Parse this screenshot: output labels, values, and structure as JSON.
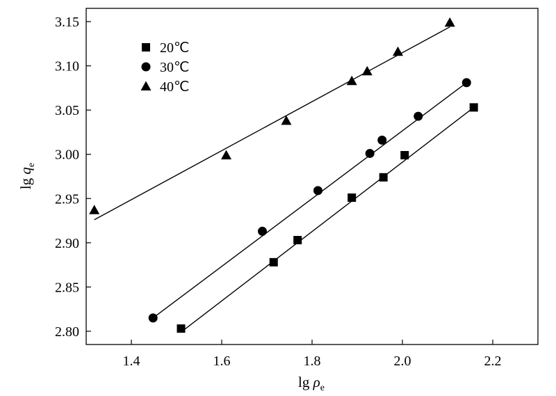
{
  "chart_data": {
    "type": "scatter",
    "xlabel_prefix": "lg",
    "xlabel_var": "ρ",
    "xlabel_sub": "e",
    "ylabel_prefix": "lg",
    "ylabel_var": "q",
    "ylabel_sub": "e",
    "xlim": [
      1.3,
      2.3
    ],
    "ylim": [
      2.785,
      3.165
    ],
    "xticks": [
      1.4,
      1.6,
      1.8,
      2.0,
      2.2
    ],
    "xtick_labels": [
      "1.4",
      "1.6",
      "1.8",
      "2.0",
      "2.2"
    ],
    "yticks": [
      2.8,
      2.85,
      2.9,
      2.95,
      3.0,
      3.05,
      3.1,
      3.15
    ],
    "ytick_labels": [
      "2.80",
      "2.85",
      "2.90",
      "2.95",
      "3.00",
      "3.05",
      "3.10",
      "3.15"
    ],
    "grid": false,
    "legend_position": "top-left",
    "series": [
      {
        "name": "20℃",
        "marker": "square",
        "x": [
          1.51,
          1.715,
          1.768,
          1.888,
          1.958,
          2.005,
          2.158
        ],
        "y": [
          2.803,
          2.878,
          2.903,
          2.951,
          2.974,
          2.999,
          3.053
        ],
        "fit": {
          "x": [
            1.51,
            2.158
          ],
          "y": [
            2.799,
            3.053
          ]
        }
      },
      {
        "name": "30℃",
        "marker": "circle",
        "x": [
          1.448,
          1.69,
          1.813,
          1.928,
          1.955,
          2.035,
          2.142
        ],
        "y": [
          2.815,
          2.913,
          2.959,
          3.001,
          3.016,
          3.043,
          3.081
        ],
        "fit": {
          "x": [
            1.448,
            2.142
          ],
          "y": [
            2.815,
            3.081
          ]
        }
      },
      {
        "name": "40℃",
        "marker": "triangle",
        "x": [
          1.318,
          1.61,
          1.743,
          1.888,
          1.922,
          1.99,
          2.105
        ],
        "y": [
          2.937,
          2.999,
          3.038,
          3.083,
          3.094,
          3.116,
          3.149
        ],
        "fit": {
          "x": [
            1.318,
            2.105
          ],
          "y": [
            2.926,
            3.144
          ]
        }
      }
    ]
  }
}
